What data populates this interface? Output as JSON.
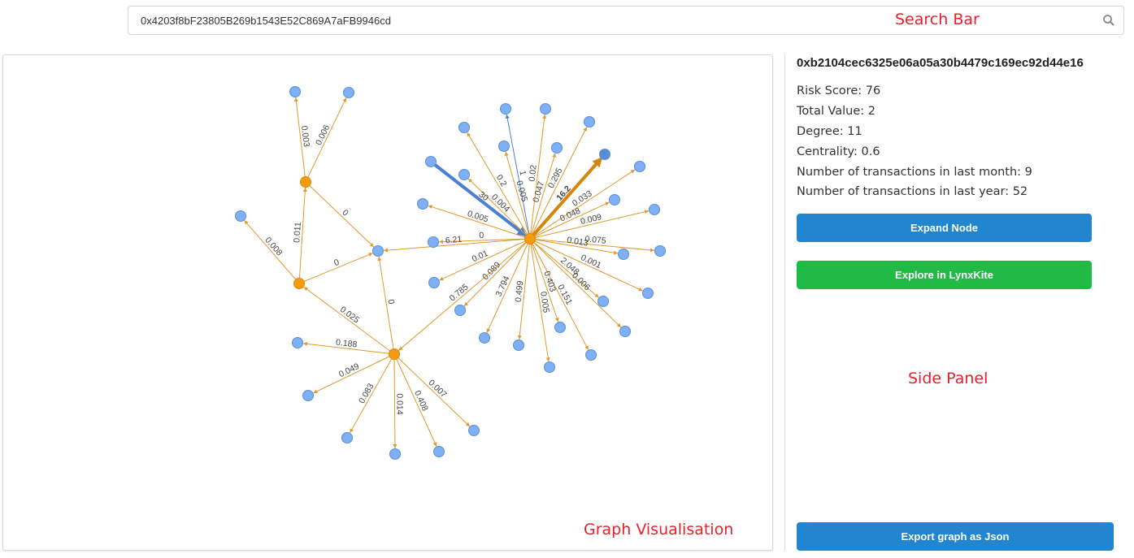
{
  "search": {
    "value": "0x4203f8bF23805B269b1543E52C869A7aFB9946cd",
    "icon": "search-icon"
  },
  "annotations": {
    "search_bar": "Search Bar",
    "side_panel": "Side Panel",
    "graph": "Graph Visualisation"
  },
  "side_panel": {
    "address": "0xb2104cec6325e06a05a30b4479c169ec92d44e16",
    "stats": [
      "Risk Score: 76",
      "Total Value: 2",
      "Degree: 11",
      "Centrality: 0.6",
      "Number of transactions in last month: 9",
      "Number of transactions in last year: 52"
    ],
    "expand_label": "Expand Node",
    "explore_label": "Explore in LynxKite",
    "export_label": "Export graph as Json"
  },
  "colors": {
    "orange_node": "#f39c12",
    "blue_node": "#7fb0f5",
    "selected_node": "#5a8bd6",
    "edge": "#e09a2c",
    "blue_edge": "#4a7fd4",
    "primary_button": "#2185d0",
    "green_button": "#21ba45",
    "annotation": "#e8202a"
  },
  "graph": {
    "edges": [
      {
        "from": "H",
        "to": "n1",
        "label": "1",
        "style": "blue"
      },
      {
        "from": "H",
        "to": "n2",
        "label": "0.005"
      },
      {
        "from": "H",
        "to": "n3",
        "label": "0.2"
      },
      {
        "from": "H",
        "to": "n4",
        "label": "0.02"
      },
      {
        "from": "H",
        "to": "n5",
        "label": "0.047"
      },
      {
        "from": "H",
        "to": "n6",
        "label": "0.295"
      },
      {
        "from": "H",
        "to": "n7",
        "label": "16.2",
        "style": "thick"
      },
      {
        "from": "H",
        "to": "n8",
        "label": "0.033"
      },
      {
        "from": "H",
        "to": "n9",
        "label": "0.048"
      },
      {
        "from": "H",
        "to": "n10",
        "label": "0.009"
      },
      {
        "from": "H",
        "to": "n11",
        "label": "0.075"
      },
      {
        "from": "H",
        "to": "n12",
        "label": "0.013"
      },
      {
        "from": "H",
        "to": "n13",
        "label": "0.001"
      },
      {
        "from": "H",
        "to": "n14",
        "label": "2.048"
      },
      {
        "from": "H",
        "to": "n15",
        "label": "0.006"
      },
      {
        "from": "H",
        "to": "n16",
        "label": "0.151"
      },
      {
        "from": "H",
        "to": "n17",
        "label": "0.403"
      },
      {
        "from": "H",
        "to": "n18",
        "label": "0.005"
      },
      {
        "from": "H",
        "to": "n19",
        "label": "0.499"
      },
      {
        "from": "H",
        "to": "n20",
        "label": "3.794"
      },
      {
        "from": "H",
        "to": "n21",
        "label": "0.089"
      },
      {
        "from": "H",
        "to": "C",
        "label": "0.785"
      },
      {
        "from": "H",
        "to": "n22",
        "label": "0.01"
      },
      {
        "from": "H",
        "to": "n23",
        "label": "0"
      },
      {
        "from": "H",
        "to": "M",
        "label": "6.21"
      },
      {
        "from": "H",
        "to": "n24",
        "label": "0.005"
      },
      {
        "from": "n25",
        "to": "H",
        "label": "30",
        "style": "bluethick"
      },
      {
        "from": "H",
        "to": "n26",
        "label": "0.004"
      },
      {
        "from": "A",
        "to": "n27",
        "label": "0.003"
      },
      {
        "from": "A",
        "to": "n28",
        "label": "0.006"
      },
      {
        "from": "A",
        "to": "M",
        "label": "0"
      },
      {
        "from": "B",
        "to": "A",
        "label": "0.011"
      },
      {
        "from": "B",
        "to": "n29",
        "label": "0.008"
      },
      {
        "from": "B",
        "to": "M",
        "label": "0"
      },
      {
        "from": "C",
        "to": "B",
        "label": "0.025"
      },
      {
        "from": "C",
        "to": "M",
        "label": "0"
      },
      {
        "from": "C",
        "to": "n30",
        "label": "0.188"
      },
      {
        "from": "C",
        "to": "n31",
        "label": "0.049"
      },
      {
        "from": "C",
        "to": "n32",
        "label": "0.083"
      },
      {
        "from": "C",
        "to": "n33",
        "label": "0.014"
      },
      {
        "from": "C",
        "to": "n34",
        "label": "0.408"
      },
      {
        "from": "C",
        "to": "n35",
        "label": "0.007"
      }
    ],
    "selected_node": "n7"
  }
}
